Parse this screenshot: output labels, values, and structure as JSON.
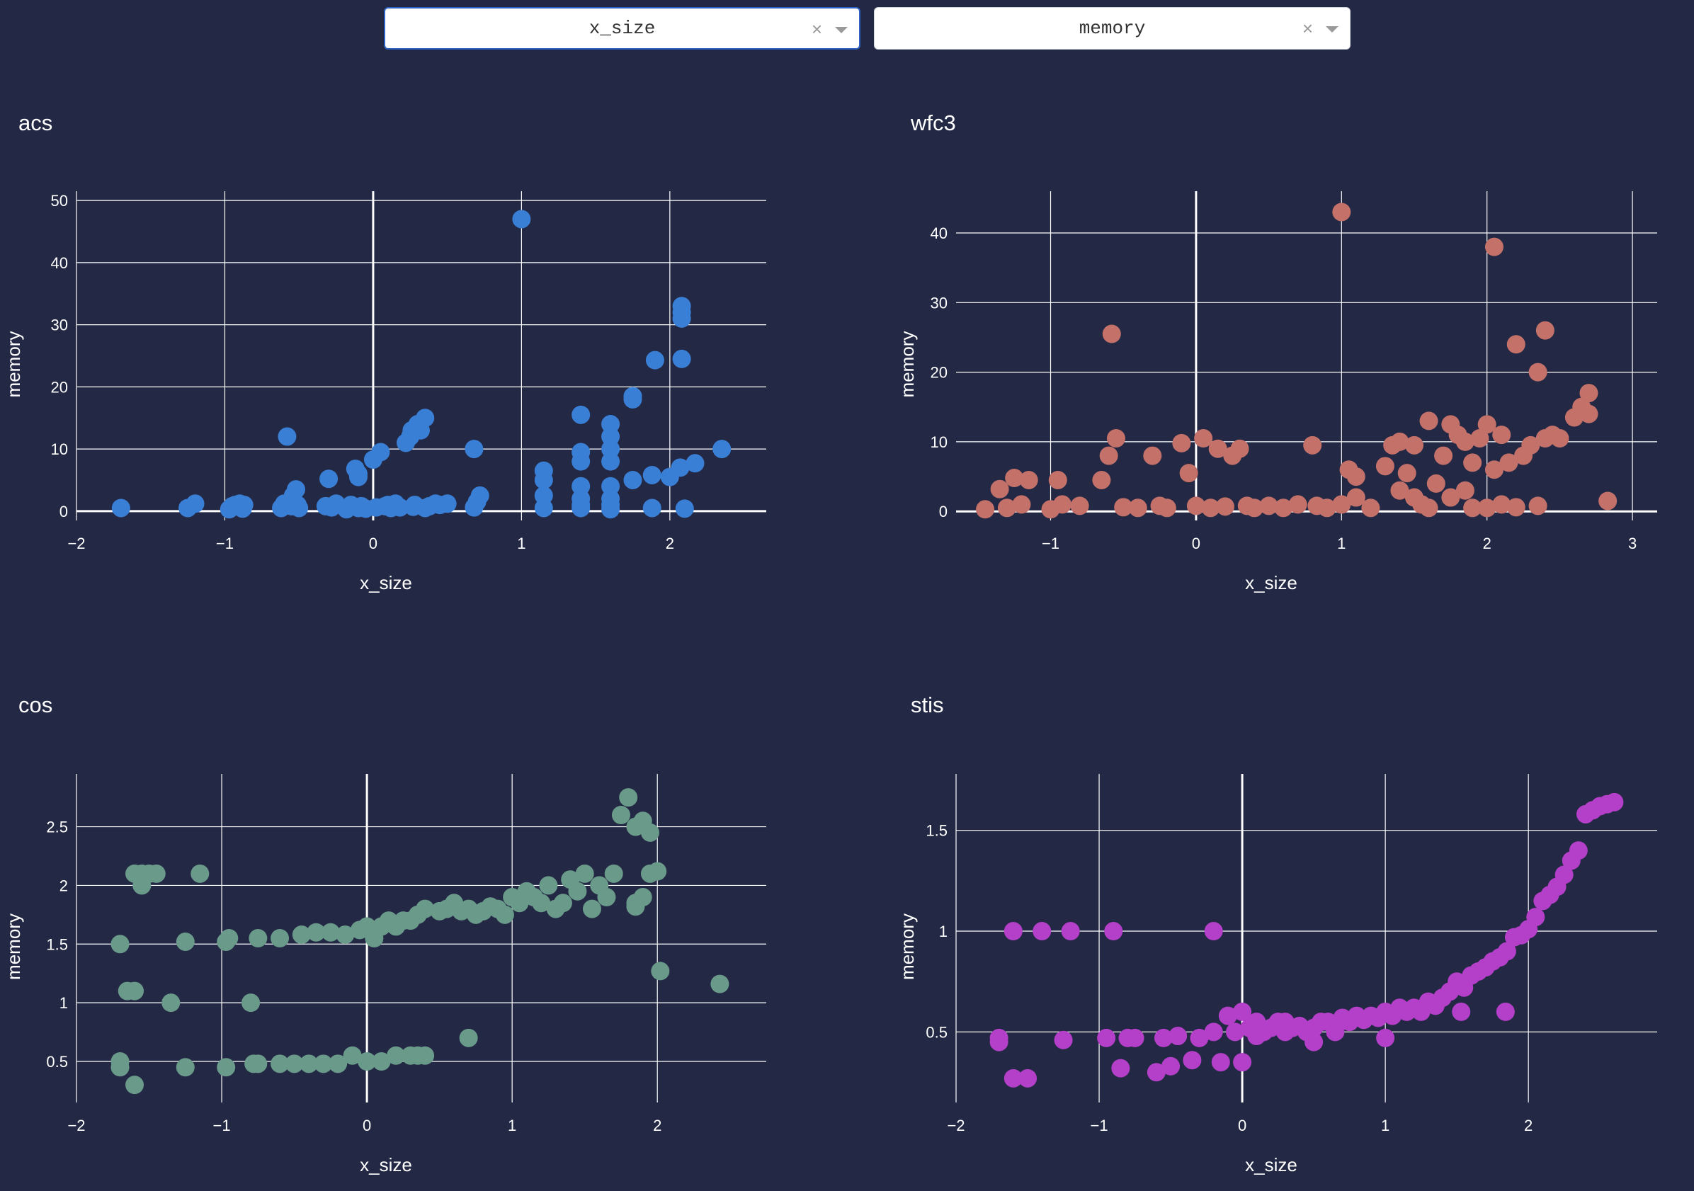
{
  "controls": {
    "x_dropdown": {
      "value": "x_size"
    },
    "y_dropdown": {
      "value": "memory"
    },
    "clear_symbol": "×"
  },
  "chart_data": [
    {
      "type": "scatter",
      "title": "acs",
      "xlabel": "x_size",
      "ylabel": "memory",
      "color": "#3a7fd6",
      "xlim": [
        -2,
        2.65
      ],
      "ylim": [
        -1.5,
        51.5
      ],
      "xticks": [
        -2,
        -1,
        0,
        1,
        2
      ],
      "yticks": [
        0,
        10,
        20,
        30,
        40,
        50
      ],
      "x": [
        -1.7,
        -1.25,
        -1.2,
        -0.97,
        -0.95,
        -0.93,
        -0.9,
        -0.88,
        -0.87,
        -0.62,
        -0.6,
        -0.58,
        -0.55,
        -0.54,
        -0.52,
        -0.51,
        -0.5,
        -0.32,
        -0.3,
        -0.28,
        -0.25,
        -0.18,
        -0.15,
        -0.12,
        -0.1,
        -0.1,
        -0.1,
        -0.08,
        -0.05,
        0.0,
        0.02,
        0.05,
        0.08,
        0.1,
        0.12,
        0.15,
        0.18,
        0.22,
        0.25,
        0.26,
        0.27,
        0.28,
        0.3,
        0.32,
        0.35,
        0.35,
        0.38,
        0.42,
        0.45,
        0.5,
        0.68,
        0.68,
        0.7,
        0.72,
        1.0,
        1.15,
        1.15,
        1.15,
        1.15,
        1.4,
        1.4,
        1.4,
        1.4,
        1.4,
        1.4,
        1.4,
        1.6,
        1.6,
        1.6,
        1.6,
        1.6,
        1.6,
        1.6,
        1.6,
        1.75,
        1.75,
        1.75,
        1.88,
        1.88,
        1.9,
        2.0,
        2.07,
        2.08,
        2.08,
        2.08,
        2.08,
        2.1,
        2.17,
        2.35
      ],
      "y": [
        0.5,
        0.5,
        1.2,
        0.3,
        0.8,
        1.0,
        1.2,
        0.4,
        1.0,
        0.5,
        1.2,
        12,
        0.8,
        2.5,
        3.5,
        1.0,
        0.5,
        0.8,
        5.2,
        0.6,
        1.2,
        0.3,
        1.0,
        6.8,
        6.0,
        5.5,
        0.5,
        0.8,
        0.4,
        8.3,
        0.6,
        9.5,
        0.8,
        1.0,
        0.5,
        1.2,
        0.6,
        11,
        12,
        13,
        0.7,
        1.0,
        14,
        13,
        15,
        0.5,
        0.8,
        1.2,
        1.0,
        1.2,
        10,
        0.6,
        1.5,
        2.5,
        47,
        0.5,
        2.5,
        5,
        6.5,
        0.5,
        2,
        4,
        8,
        9.5,
        15.5,
        1,
        0.3,
        2,
        4,
        8,
        10,
        12,
        14,
        1,
        5,
        18,
        18.5,
        0.5,
        5.8,
        24.3,
        5.5,
        7,
        24.5,
        31,
        32,
        33,
        0.4,
        7.7,
        10
      ]
    },
    {
      "type": "scatter",
      "title": "wfc3",
      "xlabel": "x_size",
      "ylabel": "memory",
      "color": "#c4716a",
      "xlim": [
        -1.65,
        3.17
      ],
      "ylim": [
        -1.3,
        46
      ],
      "xticks": [
        -1,
        0,
        1,
        2,
        3
      ],
      "yticks": [
        0,
        10,
        20,
        30,
        40
      ],
      "x": [
        -1.45,
        -1.35,
        -1.3,
        -1.25,
        -1.2,
        -1.15,
        -1.0,
        -0.95,
        -0.92,
        -0.8,
        -0.65,
        -0.6,
        -0.58,
        -0.55,
        -0.5,
        -0.4,
        -0.3,
        -0.25,
        -0.2,
        -0.1,
        -0.05,
        0.0,
        0.05,
        0.1,
        0.15,
        0.2,
        0.25,
        0.3,
        0.35,
        0.4,
        0.5,
        0.6,
        0.7,
        0.8,
        0.83,
        0.9,
        1.0,
        1.0,
        1.05,
        1.1,
        1.1,
        1.2,
        1.3,
        1.35,
        1.4,
        1.4,
        1.45,
        1.5,
        1.5,
        1.55,
        1.6,
        1.6,
        1.65,
        1.7,
        1.75,
        1.75,
        1.8,
        1.85,
        1.85,
        1.9,
        1.9,
        1.95,
        2.0,
        2.0,
        2.05,
        2.05,
        2.1,
        2.1,
        2.15,
        2.2,
        2.2,
        2.25,
        2.3,
        2.35,
        2.35,
        2.4,
        2.4,
        2.45,
        2.5,
        2.6,
        2.65,
        2.7,
        2.7,
        2.83
      ],
      "y": [
        0.3,
        3.2,
        0.5,
        4.8,
        1.0,
        4.5,
        0.3,
        4.5,
        1.0,
        0.8,
        4.5,
        8.0,
        25.5,
        10.5,
        0.6,
        0.5,
        8.0,
        0.8,
        0.5,
        9.8,
        5.5,
        0.8,
        10.5,
        0.5,
        9.0,
        0.7,
        8.0,
        9.0,
        0.8,
        0.5,
        0.8,
        0.5,
        1.0,
        9.5,
        0.8,
        0.5,
        43,
        1.0,
        6.0,
        5.0,
        2.0,
        0.5,
        6.5,
        9.5,
        3.0,
        10.0,
        5.5,
        2.0,
        9.5,
        1.0,
        13.0,
        0.5,
        4.0,
        8.0,
        2.0,
        12.5,
        11.0,
        10.0,
        3.0,
        7.0,
        0.5,
        10.5,
        12.5,
        0.5,
        38,
        6.0,
        11.0,
        1.0,
        7.0,
        24,
        0.6,
        8.0,
        9.5,
        20,
        0.8,
        26,
        10.5,
        11.0,
        10.5,
        13.5,
        15.0,
        17.0,
        14.0,
        1.5
      ]
    },
    {
      "type": "scatter",
      "title": "cos",
      "xlabel": "x_size",
      "ylabel": "memory",
      "color": "#6a9a8a",
      "xlim": [
        -2,
        2.75
      ],
      "ylim": [
        0.15,
        2.95
      ],
      "xticks": [
        -2,
        -1,
        0,
        1,
        2
      ],
      "yticks": [
        0.5,
        1,
        1.5,
        2,
        2.5
      ],
      "x": [
        -1.7,
        -1.7,
        -1.7,
        -1.65,
        -1.6,
        -1.55,
        -1.5,
        -1.45,
        -1.6,
        -1.55,
        -1.6,
        -1.35,
        -1.15,
        -1.25,
        -1.25,
        -0.97,
        -0.97,
        -0.95,
        -0.8,
        -0.78,
        -0.75,
        -0.75,
        -0.6,
        -0.6,
        -0.5,
        -0.45,
        -0.4,
        -0.35,
        -0.3,
        -0.25,
        -0.2,
        -0.15,
        -0.1,
        -0.05,
        0.0,
        0.05,
        0.1,
        0.0,
        0.05,
        0.1,
        0.15,
        0.2,
        0.25,
        0.3,
        0.35,
        0.4,
        0.5,
        0.55,
        0.6,
        0.65,
        0.7,
        0.75,
        0.8,
        0.85,
        0.9,
        0.95,
        1.0,
        1.05,
        1.1,
        1.15,
        1.2,
        1.25,
        1.3,
        1.35,
        1.4,
        1.45,
        1.5,
        1.55,
        1.6,
        1.65,
        1.7,
        1.75,
        1.8,
        1.85,
        1.9,
        1.95,
        1.85,
        1.9,
        1.95,
        2.0,
        1.85,
        0.3,
        0.35,
        0.4,
        0.2,
        0.7,
        2.02,
        2.43
      ],
      "y": [
        0.5,
        0.45,
        1.5,
        1.1,
        1.1,
        2.1,
        2.1,
        2.1,
        2.1,
        2.0,
        0.3,
        1.0,
        2.1,
        1.52,
        0.45,
        1.52,
        0.45,
        1.55,
        1.0,
        0.48,
        0.48,
        1.55,
        0.48,
        1.55,
        0.48,
        1.58,
        0.48,
        1.6,
        0.48,
        1.6,
        0.48,
        1.58,
        0.55,
        1.62,
        0.5,
        1.6,
        0.5,
        1.65,
        1.55,
        1.65,
        1.7,
        1.65,
        1.7,
        1.7,
        1.75,
        1.8,
        1.78,
        1.8,
        1.85,
        1.78,
        1.8,
        1.75,
        1.78,
        1.82,
        1.8,
        1.75,
        1.9,
        1.85,
        1.95,
        1.9,
        1.85,
        2.0,
        1.8,
        1.85,
        2.05,
        1.95,
        2.1,
        1.8,
        2.0,
        1.9,
        2.1,
        2.6,
        2.75,
        2.5,
        2.55,
        2.45,
        1.85,
        1.9,
        2.1,
        2.12,
        1.82,
        0.55,
        0.55,
        0.55,
        0.55,
        0.7,
        1.27,
        1.16
      ]
    },
    {
      "type": "scatter",
      "title": "stis",
      "xlabel": "x_size",
      "ylabel": "memory",
      "color": "#b43fc8",
      "xlim": [
        -2,
        2.9
      ],
      "ylim": [
        0.15,
        1.78
      ],
      "xticks": [
        -2,
        -1,
        0,
        1,
        2
      ],
      "yticks": [
        0.5,
        1,
        1.5
      ],
      "x": [
        -1.7,
        -1.7,
        -1.6,
        -1.6,
        -1.5,
        -1.4,
        -1.25,
        -1.2,
        -0.9,
        -0.95,
        -0.85,
        -0.8,
        -0.75,
        -0.6,
        -0.55,
        -0.5,
        -0.45,
        -0.35,
        -0.3,
        -0.2,
        -0.15,
        -0.1,
        -0.2,
        -0.05,
        0.0,
        0.0,
        0.05,
        0.1,
        0.1,
        0.15,
        0.2,
        0.25,
        0.3,
        0.35,
        0.4,
        0.45,
        0.5,
        0.55,
        0.6,
        0.65,
        0.7,
        0.75,
        0.8,
        0.85,
        0.9,
        0.95,
        1.0,
        1.05,
        1.1,
        1.15,
        1.2,
        1.25,
        1.3,
        1.35,
        1.4,
        1.45,
        1.5,
        1.55,
        1.6,
        1.65,
        1.7,
        1.75,
        1.8,
        1.85,
        1.9,
        1.95,
        2.0,
        2.05,
        2.1,
        2.15,
        2.2,
        2.25,
        2.3,
        2.35,
        2.4,
        2.45,
        2.5,
        2.55,
        2.6,
        1.53,
        1.84,
        0.5,
        0.3,
        1.0
      ],
      "y": [
        0.47,
        0.45,
        0.27,
        1.0,
        0.27,
        1.0,
        0.46,
        1.0,
        1.0,
        0.47,
        0.32,
        0.47,
        0.47,
        0.3,
        0.47,
        0.33,
        0.48,
        0.36,
        0.47,
        0.5,
        0.35,
        0.58,
        1.0,
        0.5,
        0.6,
        0.35,
        0.52,
        0.55,
        0.48,
        0.5,
        0.52,
        0.55,
        0.5,
        0.52,
        0.53,
        0.5,
        0.52,
        0.55,
        0.55,
        0.5,
        0.57,
        0.55,
        0.58,
        0.56,
        0.58,
        0.57,
        0.6,
        0.58,
        0.62,
        0.6,
        0.62,
        0.6,
        0.65,
        0.63,
        0.67,
        0.7,
        0.75,
        0.72,
        0.78,
        0.8,
        0.82,
        0.85,
        0.87,
        0.9,
        0.97,
        0.98,
        1.01,
        1.07,
        1.15,
        1.18,
        1.22,
        1.28,
        1.35,
        1.4,
        1.58,
        1.6,
        1.62,
        1.63,
        1.64,
        0.6,
        0.6,
        0.45,
        0.55,
        0.47
      ]
    }
  ]
}
